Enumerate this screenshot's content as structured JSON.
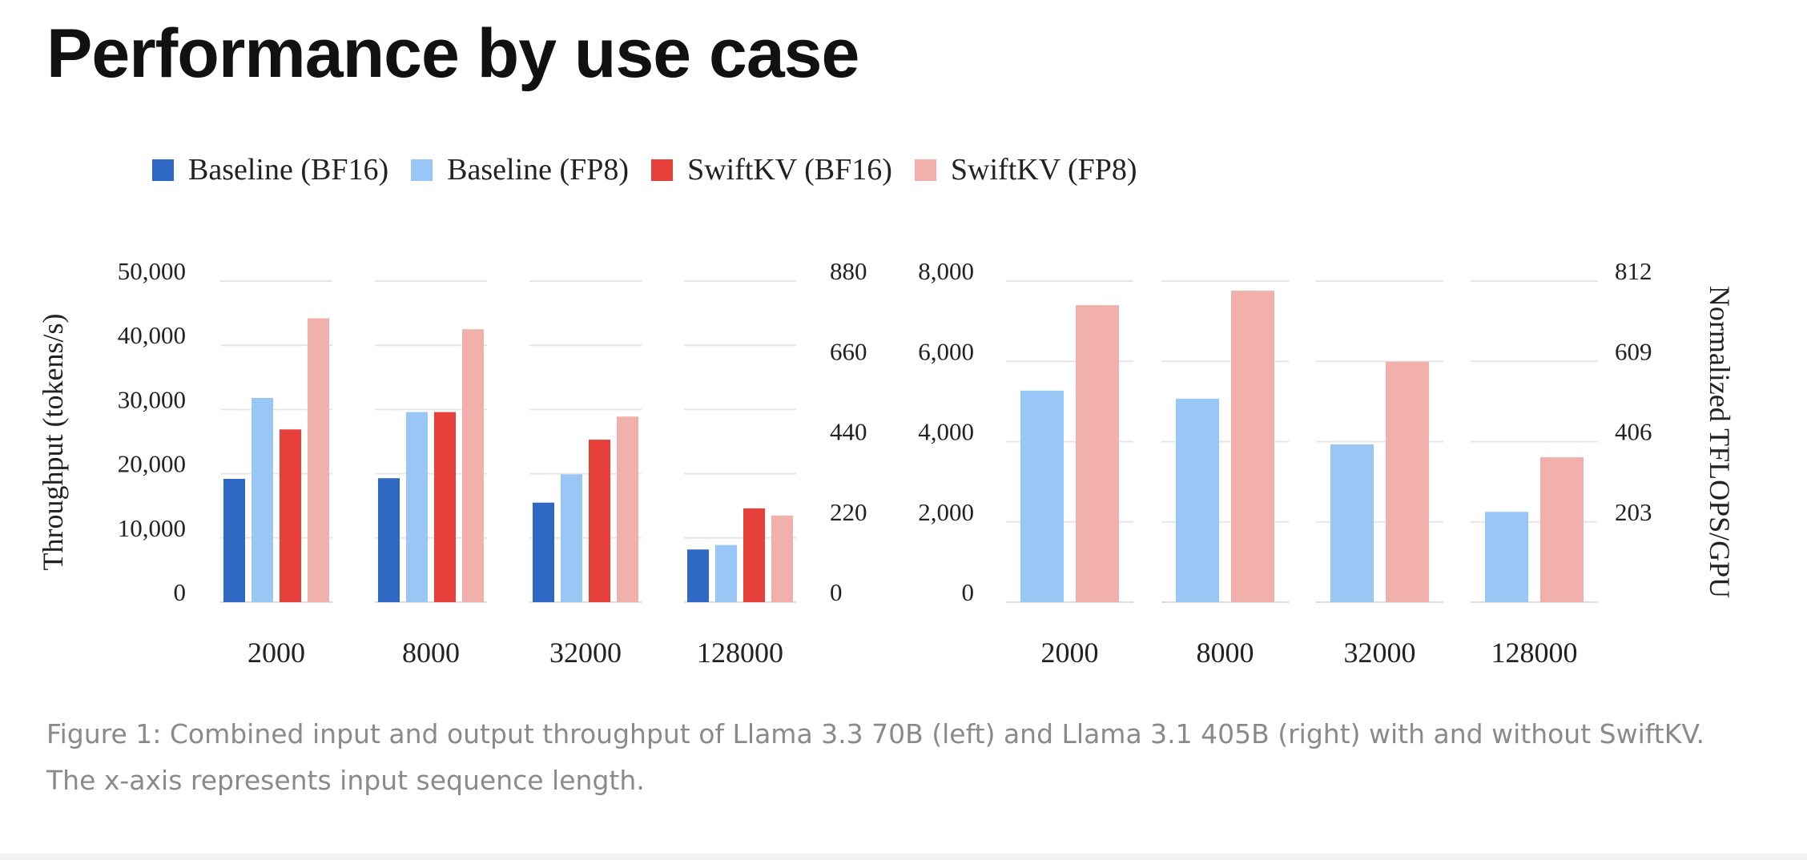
{
  "page": {
    "title": "Performance by use case"
  },
  "legend": [
    {
      "label": "Baseline (BF16)",
      "color": "#2e67c4"
    },
    {
      "label": "Baseline (FP8)",
      "color": "#98c7f6"
    },
    {
      "label": "SwiftKV (BF16)",
      "color": "#e7403a"
    },
    {
      "label": "SwiftKV (FP8)",
      "color": "#f2b0ad"
    }
  ],
  "chart_data": [
    {
      "type": "bar",
      "categories": [
        "2000",
        "8000",
        "32000",
        "128000"
      ],
      "series": [
        {
          "name": "Baseline (BF16)",
          "values": [
            19200,
            19300,
            15500,
            8200
          ]
        },
        {
          "name": "Baseline (FP8)",
          "values": [
            31800,
            29600,
            19900,
            8900
          ]
        },
        {
          "name": "SwiftKV (BF16)",
          "values": [
            26900,
            29600,
            25300,
            14600
          ]
        },
        {
          "name": "SwiftKV (FP8)",
          "values": [
            44200,
            42500,
            28900,
            13500
          ]
        }
      ],
      "ylabel": "Throughput (tokens/s)",
      "ylim": [
        0,
        50000
      ],
      "yticks": [
        "0",
        "10,000",
        "20,000",
        "30,000",
        "40,000",
        "50,000"
      ],
      "y2ticks": [
        "0",
        "220",
        "440",
        "660",
        "880"
      ],
      "grid": true
    },
    {
      "type": "bar",
      "categories": [
        "2000",
        "8000",
        "32000",
        "128000"
      ],
      "series": [
        {
          "name": "Baseline (FP8)",
          "values": [
            5270,
            5070,
            3930,
            2250
          ]
        },
        {
          "name": "SwiftKV (FP8)",
          "values": [
            7400,
            7760,
            5990,
            3610
          ]
        }
      ],
      "y2label": "Normalized TFLOPS/GPU",
      "ylim": [
        0,
        8000
      ],
      "yticks": [
        "0",
        "2,000",
        "4,000",
        "6,000",
        "8,000"
      ],
      "y2ticks": [
        "203",
        "406",
        "609",
        "812"
      ],
      "grid": true
    }
  ],
  "caption": "Figure 1: Combined input and output throughput of Llama 3.3 70B (left) and Llama 3.1 405B (right) with and without SwiftKV. The x-axis represents input sequence length."
}
